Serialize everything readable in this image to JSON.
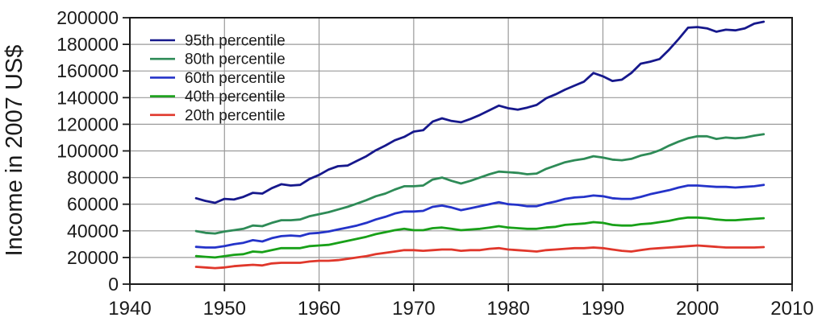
{
  "chart_data": {
    "type": "line",
    "title": "",
    "xlabel": "",
    "ylabel": "Income in 2007 US$",
    "xlim": [
      1940,
      2010
    ],
    "ylim": [
      0,
      200000
    ],
    "xticks": [
      1940,
      1950,
      1960,
      1970,
      1980,
      1990,
      2000,
      2010
    ],
    "yticks": [
      0,
      20000,
      40000,
      60000,
      80000,
      100000,
      120000,
      140000,
      160000,
      180000,
      200000
    ],
    "grid": true,
    "legend_position": "top-left-inside",
    "x": [
      1947,
      1948,
      1949,
      1950,
      1951,
      1952,
      1953,
      1954,
      1955,
      1956,
      1957,
      1958,
      1959,
      1960,
      1961,
      1962,
      1963,
      1964,
      1965,
      1966,
      1967,
      1968,
      1969,
      1970,
      1971,
      1972,
      1973,
      1974,
      1975,
      1976,
      1977,
      1978,
      1979,
      1980,
      1981,
      1982,
      1983,
      1984,
      1985,
      1986,
      1987,
      1988,
      1989,
      1990,
      1991,
      1992,
      1993,
      1994,
      1995,
      1996,
      1997,
      1998,
      1999,
      2000,
      2001,
      2002,
      2003,
      2004,
      2005,
      2006,
      2007
    ],
    "series": [
      {
        "name": "95th percentile",
        "color": "#16188c",
        "values": [
          64500,
          62500,
          61000,
          64000,
          63500,
          65500,
          68500,
          68000,
          72000,
          75000,
          74000,
          74500,
          79000,
          82000,
          86000,
          88500,
          89000,
          92500,
          96000,
          100500,
          104000,
          108000,
          110500,
          114500,
          115500,
          122000,
          124500,
          122500,
          121500,
          124000,
          127000,
          130500,
          134000,
          132000,
          131000,
          132500,
          134500,
          139500,
          142500,
          146000,
          149000,
          152000,
          158500,
          156000,
          152500,
          153500,
          158500,
          165500,
          167000,
          169000,
          176000,
          184000,
          192500,
          193000,
          192000,
          189500,
          191000,
          190500,
          192000,
          195500,
          197000
        ]
      },
      {
        "name": "80th percentile",
        "color": "#2e8b57",
        "values": [
          39800,
          38500,
          38000,
          39500,
          40500,
          41500,
          44000,
          43500,
          46000,
          48000,
          48000,
          48500,
          51000,
          52500,
          54000,
          56000,
          58000,
          60500,
          63000,
          66000,
          68000,
          71000,
          73500,
          73500,
          74000,
          78500,
          80000,
          77500,
          75500,
          77500,
          80000,
          82500,
          84500,
          84000,
          83500,
          82500,
          83000,
          86500,
          89000,
          91500,
          93000,
          94000,
          96000,
          95000,
          93500,
          93000,
          94000,
          96500,
          98000,
          100500,
          104000,
          107000,
          109500,
          111000,
          111000,
          109000,
          110000,
          109500,
          110000,
          111500,
          112500
        ]
      },
      {
        "name": "60th percentile",
        "color": "#2433c9",
        "values": [
          28000,
          27500,
          27500,
          28500,
          30000,
          31000,
          33000,
          32000,
          34500,
          36000,
          36500,
          36000,
          38000,
          38500,
          39500,
          41000,
          42500,
          44000,
          46000,
          48500,
          50500,
          53000,
          54500,
          54500,
          55000,
          58000,
          59000,
          57500,
          55500,
          57000,
          58500,
          60000,
          61500,
          60000,
          59500,
          58500,
          58500,
          60500,
          62000,
          64000,
          65000,
          65500,
          66500,
          66000,
          64500,
          64000,
          64000,
          65500,
          67500,
          69000,
          70500,
          72500,
          74000,
          74000,
          73500,
          73000,
          73000,
          72500,
          73000,
          73500,
          74500
        ]
      },
      {
        "name": "40th percentile",
        "color": "#18a018",
        "values": [
          21000,
          20500,
          20000,
          21000,
          22000,
          22500,
          24500,
          24000,
          25500,
          27000,
          27000,
          27000,
          28500,
          29000,
          29500,
          31000,
          32500,
          34000,
          35500,
          37500,
          39000,
          40500,
          41500,
          40500,
          40500,
          42000,
          42500,
          41500,
          40500,
          41000,
          41500,
          42500,
          43500,
          42500,
          42000,
          41500,
          41500,
          42500,
          43000,
          44500,
          45000,
          45500,
          46500,
          46000,
          44500,
          44000,
          44000,
          45000,
          45500,
          46500,
          47500,
          49000,
          50000,
          50000,
          49500,
          48500,
          48000,
          48000,
          48500,
          49000,
          49500
        ]
      },
      {
        "name": "20th percentile",
        "color": "#e0372b",
        "values": [
          13000,
          12500,
          12000,
          12500,
          13500,
          14000,
          14500,
          14000,
          15500,
          16000,
          16000,
          16000,
          17000,
          17500,
          17500,
          18000,
          19000,
          20000,
          21000,
          22500,
          23500,
          24500,
          25500,
          25500,
          25000,
          25500,
          26000,
          26000,
          25000,
          25500,
          25500,
          26500,
          27000,
          26000,
          25500,
          25000,
          24500,
          25500,
          26000,
          26500,
          27000,
          27000,
          27500,
          27000,
          26000,
          25000,
          24500,
          25500,
          26500,
          27000,
          27500,
          28000,
          28500,
          29000,
          28500,
          28000,
          27500,
          27500,
          27500,
          27500,
          27800
        ]
      }
    ]
  },
  "style": {
    "grid_color": "#9a9a9a",
    "axis_color": "#1a1a1a",
    "background": "#ffffff"
  }
}
